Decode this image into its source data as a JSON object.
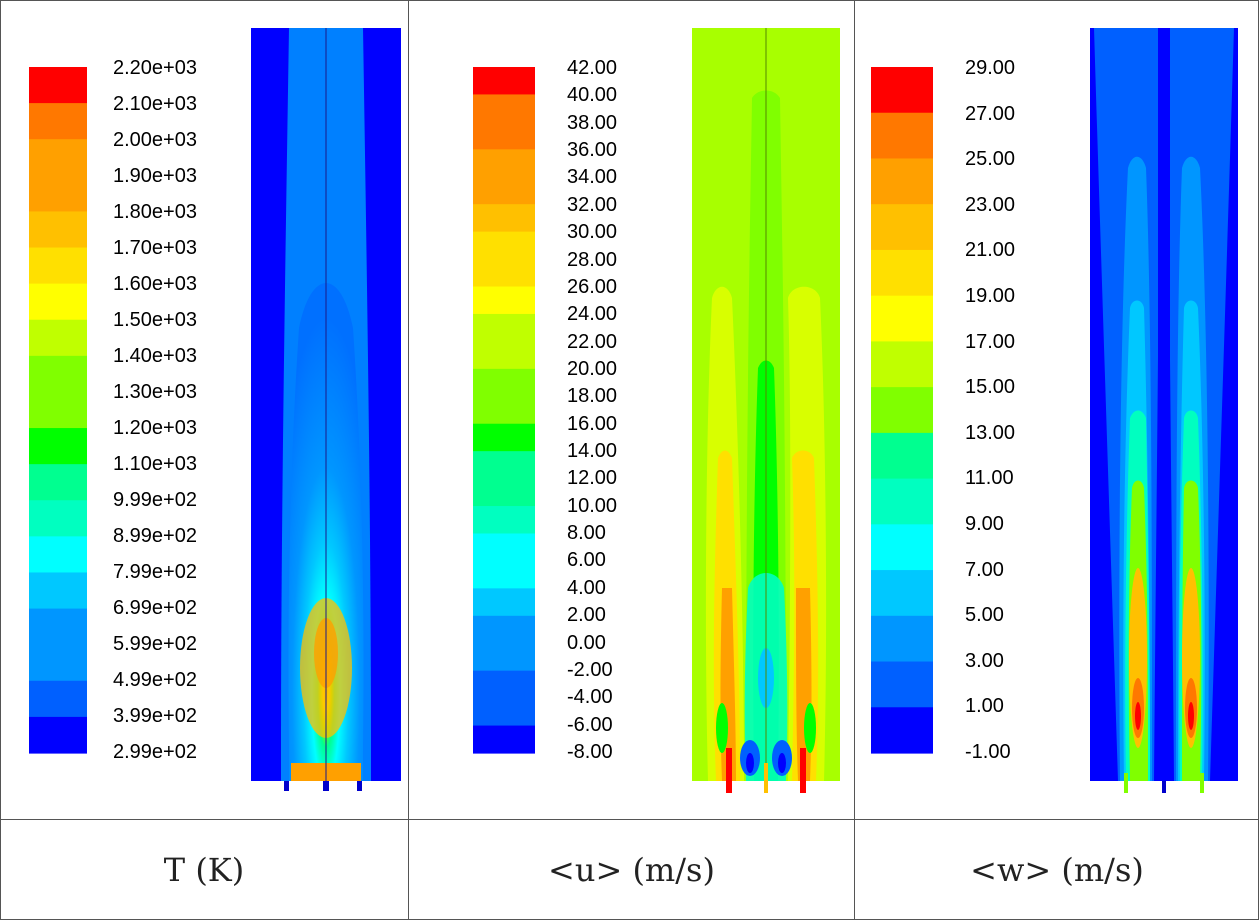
{
  "panels": [
    {
      "id": "temperature",
      "caption": "T (K)",
      "labels": [
        "2.20e+03",
        "2.10e+03",
        "2.00e+03",
        "1.90e+03",
        "1.80e+03",
        "1.70e+03",
        "1.60e+03",
        "1.50e+03",
        "1.40e+03",
        "1.30e+03",
        "1.20e+03",
        "1.10e+03",
        "9.99e+02",
        "8.99e+02",
        "7.99e+02",
        "6.99e+02",
        "5.99e+02",
        "4.99e+02",
        "3.99e+02",
        "2.99e+02"
      ]
    },
    {
      "id": "axial-velocity",
      "caption": "<u> (m/s)",
      "labels": [
        "42.00",
        "40.00",
        "38.00",
        "36.00",
        "34.00",
        "32.00",
        "30.00",
        "28.00",
        "26.00",
        "24.00",
        "22.00",
        "20.00",
        "18.00",
        "16.00",
        "14.00",
        "12.00",
        "10.00",
        "8.00",
        "6.00",
        "4.00",
        "2.00",
        "0.00",
        "-2.00",
        "-4.00",
        "-6.00",
        "-8.00"
      ]
    },
    {
      "id": "transverse-velocity",
      "caption": "<w> (m/s)",
      "labels": [
        "29.00",
        "27.00",
        "25.00",
        "23.00",
        "21.00",
        "19.00",
        "17.00",
        "15.00",
        "13.00",
        "11.00",
        "9.00",
        "7.00",
        "5.00",
        "3.00",
        "1.00",
        "-1.00"
      ]
    }
  ],
  "colors": {
    "scale": [
      "#0000ff",
      "#0060ff",
      "#0096ff",
      "#00c8ff",
      "#00ffff",
      "#00ffc0",
      "#00ff90",
      "#00ff00",
      "#80ff00",
      "#c0ff00",
      "#ffff00",
      "#ffe000",
      "#ffc000",
      "#ffa000",
      "#ff7800",
      "#ff0000"
    ],
    "background_u": "#a8ff00",
    "border": "#555555"
  }
}
